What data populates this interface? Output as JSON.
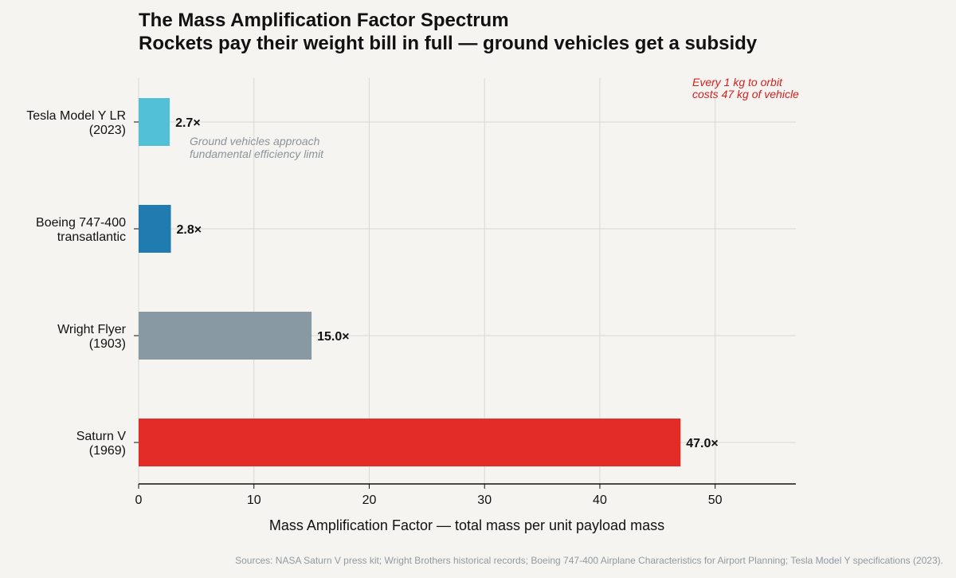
{
  "chart_data": {
    "type": "bar",
    "orientation": "horizontal",
    "title": "The Mass Amplification Factor Spectrum",
    "subtitle": "Rockets pay their weight bill in full — ground vehicles get a subsidy",
    "xlabel": "Mass Amplification Factor — total mass per unit payload mass",
    "ylabel": "",
    "xlim": [
      0,
      57
    ],
    "xticks": [
      0,
      10,
      20,
      30,
      40,
      50
    ],
    "grid": true,
    "categories": [
      [
        "Tesla Model Y LR",
        "(2023)"
      ],
      [
        "Boeing 747-400",
        "transatlantic"
      ],
      [
        "Wright Flyer",
        "(1903)"
      ],
      [
        "Saturn V",
        "(1969)"
      ]
    ],
    "values": [
      2.7,
      2.8,
      15.0,
      47.0
    ],
    "value_labels": [
      "2.7×",
      "2.8×",
      "15.0×",
      "47.0×"
    ],
    "colors": [
      "#52c0d6",
      "#1f7bb0",
      "#8899a3",
      "#e32b27"
    ],
    "annotations": [
      {
        "text": [
          "Every 1 kg to orbit",
          "costs 47 kg of vehicle"
        ],
        "color": "#d42020"
      },
      {
        "text": [
          "Ground vehicles approach",
          "fundamental efficiency limit"
        ],
        "color": "#8a949c"
      }
    ],
    "source": "Sources: NASA Saturn V press kit; Wright Brothers historical records; Boeing 747-400 Airplane Characteristics for Airport Planning; Tesla Model Y specifications (2023)."
  }
}
